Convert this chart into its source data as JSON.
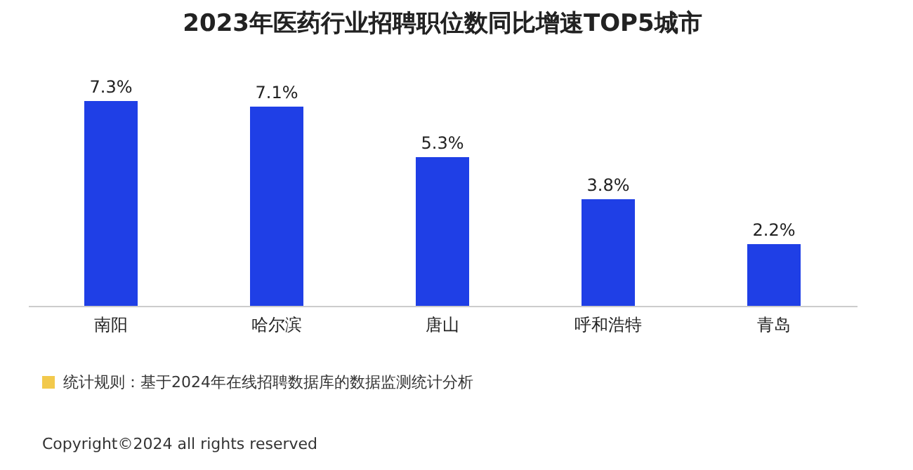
{
  "chart_data": {
    "type": "bar",
    "title": "2023年医药行业招聘职位数同比增速TOP5城市",
    "categories": [
      "南阳",
      "哈尔滨",
      "唐山",
      "呼和浩特",
      "青岛"
    ],
    "values": [
      7.3,
      7.1,
      5.3,
      3.8,
      2.2
    ],
    "value_labels": [
      "7.3%",
      "7.1%",
      "5.3%",
      "3.8%",
      "2.2%"
    ],
    "color": "#1f3fe6",
    "annotations": [
      "统计规则：基于2024年在线招聘数据库的数据监测统计分析",
      "Copyright©2024 all rights reserved"
    ]
  }
}
